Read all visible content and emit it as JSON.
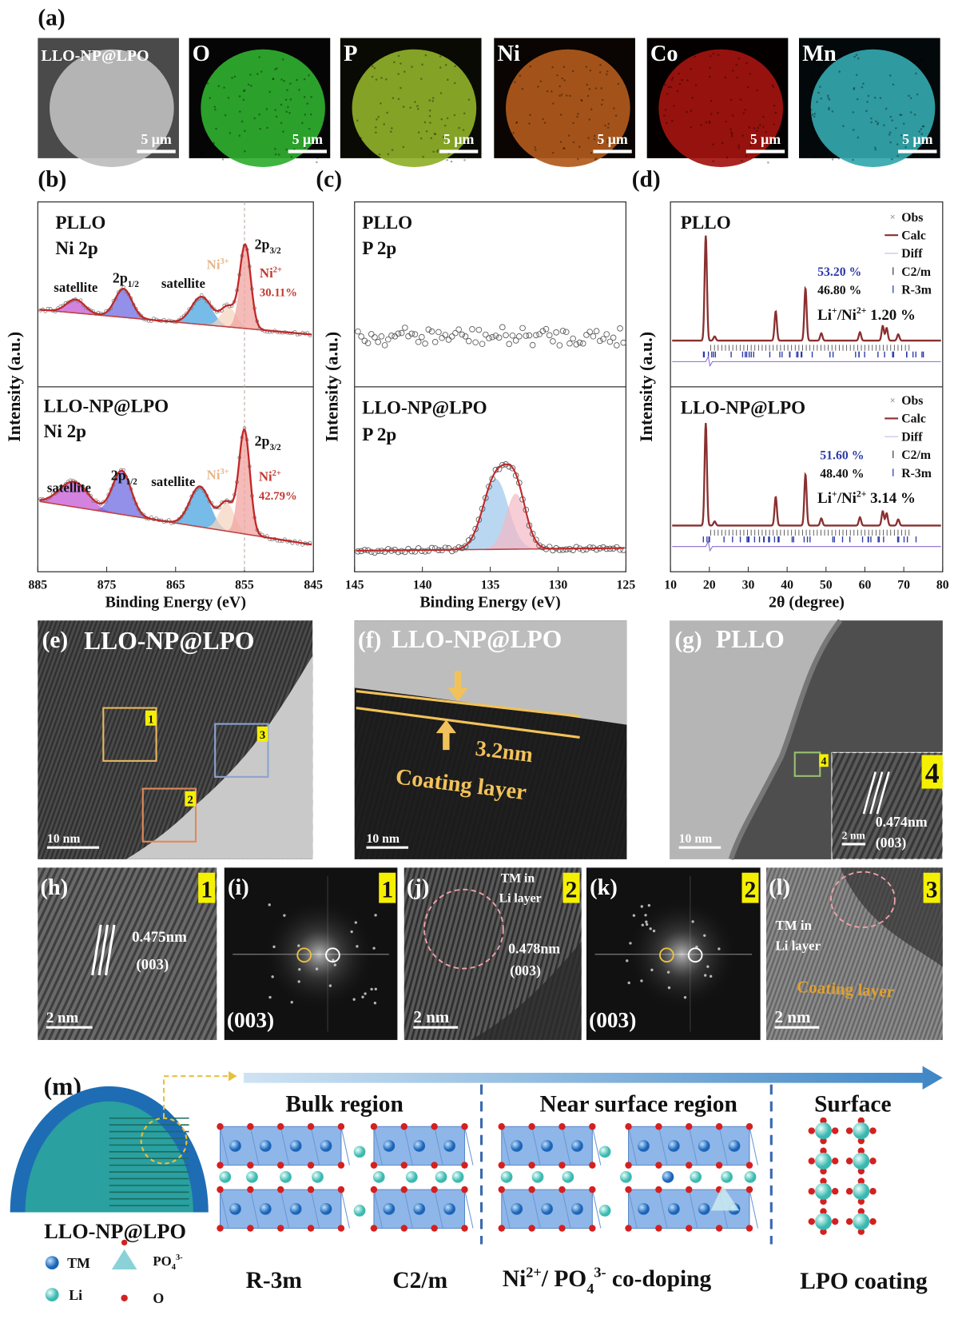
{
  "a": {
    "label": "(a)",
    "tiles": [
      {
        "name": "LLO-NP@LPO",
        "scale": "5 μm"
      },
      {
        "name": "O",
        "scale": "5 μm"
      },
      {
        "name": "P",
        "scale": "5 μm"
      },
      {
        "name": "Ni",
        "scale": "5 μm"
      },
      {
        "name": "Co",
        "scale": "5 μm"
      },
      {
        "name": "Mn",
        "scale": "5 μm"
      }
    ]
  },
  "b": {
    "label": "(b)",
    "ylabel": "Intensity (a.u.)",
    "xlabel": "Binding Energy (eV)",
    "xticks": [
      885,
      875,
      865,
      855,
      845
    ],
    "top": {
      "sample": "PLLO",
      "orbital": "Ni 2p",
      "satellite_1": "satellite",
      "p12": {
        "base": "2p",
        "sub": "1/2"
      },
      "satellite_2": "satellite",
      "ni3": {
        "base": "Ni",
        "sup": "3+"
      },
      "p32": {
        "base": "2p",
        "sub": "3/2"
      },
      "ni2": {
        "base": "Ni",
        "sup": "2+"
      },
      "ni2_share": "30.11%"
    },
    "bottom": {
      "sample": "LLO-NP@LPO",
      "orbital": "Ni 2p",
      "satellite_1": "satellite",
      "p12": {
        "base": "2p",
        "sub": "1/2"
      },
      "satellite_2": "satellite",
      "ni3": {
        "base": "Ni",
        "sup": "3+"
      },
      "p32": {
        "base": "2p",
        "sub": "3/2"
      },
      "ni2": {
        "base": "Ni",
        "sup": "2+"
      },
      "ni2_share": "42.79%"
    }
  },
  "c": {
    "label": "(c)",
    "ylabel": "Intensity (a.u.)",
    "xlabel": "Binding Energy (eV)",
    "xticks": [
      145,
      140,
      135,
      130,
      125
    ],
    "top": {
      "sample": "PLLO",
      "orbital": "P 2p"
    },
    "bottom": {
      "sample": "LLO-NP@LPO",
      "orbital": "P 2p"
    }
  },
  "d": {
    "label": "(d)",
    "ylabel": "Intensity (a.u.)",
    "xlabel": "2θ (degree)",
    "xticks": [
      10,
      20,
      30,
      40,
      50,
      60,
      70,
      80
    ],
    "top": {
      "sample": "PLLO",
      "legend": [
        "Obs",
        "Calc",
        "Diff",
        "C2/m",
        "R-3m"
      ],
      "c2m_share": "53.20 %",
      "r3m_share": "46.80 %",
      "mixing": {
        "li": "Li",
        "li_sup": "+",
        "ni": "/Ni",
        "ni_sup": "2+",
        "value": " 1.20 %"
      }
    },
    "bottom": {
      "sample": "LLO-NP@LPO",
      "legend": [
        "Obs",
        "Calc",
        "Diff",
        "C2/m",
        "R-3m"
      ],
      "c2m_share": "51.60 %",
      "r3m_share": "48.40 %",
      "mixing": {
        "li": "Li",
        "li_sup": "+",
        "ni": "/Ni",
        "ni_sup": "2+",
        "value": " 3.14 %"
      }
    }
  },
  "e": {
    "label": "(e)",
    "title": "LLO-NP@LPO",
    "boxes": [
      "1",
      "2",
      "3"
    ],
    "scale": "10 nm"
  },
  "f": {
    "label": "(f)",
    "title": "LLO-NP@LPO",
    "thickness": "3.2nm",
    "caption": "Coating layer",
    "scale": "10 nm"
  },
  "g": {
    "label": "(g)",
    "title": "PLLO",
    "box": "4",
    "inset_tag": "4",
    "spacing": "0.474nm",
    "plane": "(003)",
    "inset_scale": "2 nm",
    "scale": "10 nm"
  },
  "h": {
    "label": "(h)",
    "tag": "1",
    "spacing": "0.475nm",
    "plane": "(003)",
    "scale": "2 nm"
  },
  "i": {
    "label": "(i)",
    "tag": "1",
    "plane": "(003)"
  },
  "j": {
    "label": "(j)",
    "tag": "2",
    "note": [
      "TM in",
      "Li layer"
    ],
    "spacing": "0.478nm",
    "plane": "(003)",
    "scale": "2 nm"
  },
  "k": {
    "label": "(k)",
    "tag": "2",
    "plane": "(003)"
  },
  "l": {
    "label": "(l)",
    "tag": "3",
    "note": [
      "TM in",
      "Li layer"
    ],
    "coating": "Coating layer",
    "scale": "2 nm"
  },
  "m": {
    "label": "(m)",
    "particle": "LLO-NP@LPO",
    "regions": [
      "Bulk region",
      "Near surface region",
      "Surface"
    ],
    "phases": [
      "R-3m",
      "C2/m"
    ],
    "doping": {
      "ni": "Ni",
      "ni_sup": "2+",
      "po": "/ PO",
      "po_sub": "4",
      "po_sup": "3-",
      "rest": " co-doping"
    },
    "coating": "LPO coating",
    "legend": {
      "tm": "TM",
      "li": "Li",
      "po": {
        "base": "PO",
        "sub": "4",
        "sup": "3-"
      },
      "o": "O"
    }
  }
}
